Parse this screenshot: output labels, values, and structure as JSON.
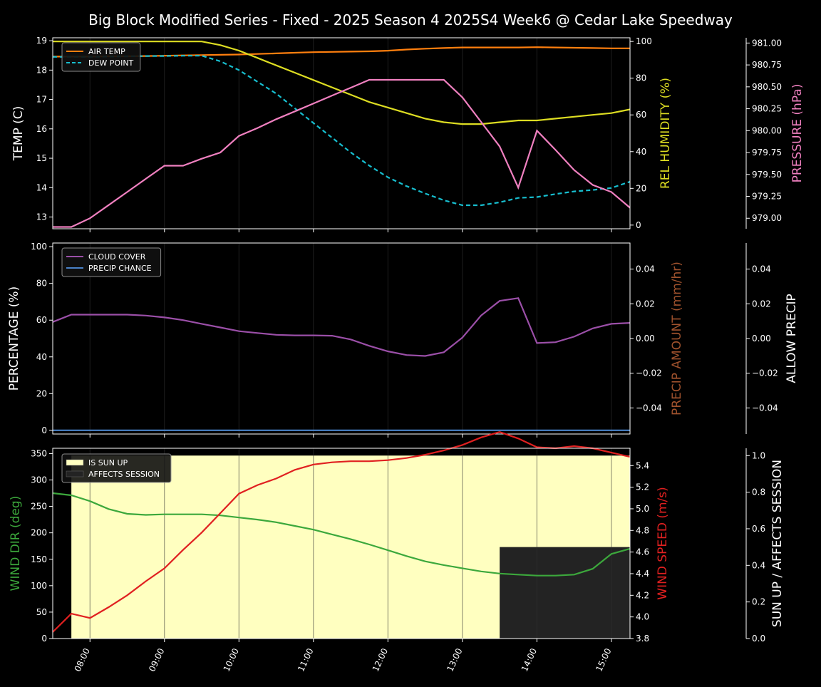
{
  "title": "Big Block Modified Series - Fixed - 2025 Season 4 2025S4 Week6 @ Cedar Lake Speedway",
  "x_ticks": [
    "08:00",
    "09:00",
    "10:00",
    "11:00",
    "12:00",
    "13:00",
    "14:00",
    "15:00"
  ],
  "colors": {
    "air_temp": "#ff7f0e",
    "dew_point": "#17becf",
    "humidity": "#dddd22",
    "pressure": "#f080c0",
    "cloud": "#9b4fa8",
    "precip_chance": "#4a82c8",
    "precip_amount": "#a0522d",
    "wind_dir": "#3ca83c",
    "wind_speed": "#e02020",
    "sun_up": "#ffffc0",
    "affects": "#232323"
  },
  "chart_data": [
    {
      "type": "line",
      "x_ticks": [
        "08:00",
        "09:00",
        "10:00",
        "11:00",
        "12:00",
        "13:00",
        "14:00",
        "15:00"
      ],
      "x_hours": [
        7.5,
        7.75,
        8.0,
        8.25,
        8.5,
        8.75,
        9.0,
        9.25,
        9.5,
        9.75,
        10.0,
        10.25,
        10.5,
        10.75,
        11.0,
        11.25,
        11.5,
        11.75,
        12.0,
        12.25,
        12.5,
        12.75,
        13.0,
        13.25,
        13.5,
        13.75,
        14.0,
        14.25,
        14.5,
        14.75,
        15.0,
        15.25
      ],
      "ylabel": "TEMP (C)",
      "ylim": [
        12.6,
        19.1
      ],
      "yticks": [
        13,
        14,
        15,
        16,
        17,
        18,
        19
      ],
      "y2label": "REL HUMIDITY (%)",
      "y2lim": [
        -2,
        102
      ],
      "y2ticks": [
        0,
        20,
        40,
        60,
        80,
        100
      ],
      "y3label": "PRESSURE (hPa)",
      "y3lim": [
        978.88,
        981.06
      ],
      "y3ticks": [
        "979.00",
        "979.25",
        "979.50",
        "979.75",
        "980.00",
        "980.25",
        "980.50",
        "980.75",
        "981.00"
      ],
      "legend": [
        "AIR TEMP",
        "DEW POINT"
      ],
      "series": [
        {
          "name": "AIR TEMP",
          "axis": "y",
          "color_key": "air_temp",
          "dash": false,
          "values": [
            18.46,
            18.46,
            18.46,
            18.47,
            18.47,
            18.48,
            18.49,
            18.5,
            18.51,
            18.52,
            18.53,
            18.55,
            18.57,
            18.59,
            18.61,
            18.62,
            18.63,
            18.64,
            18.66,
            18.7,
            18.73,
            18.75,
            18.77,
            18.77,
            18.77,
            18.77,
            18.78,
            18.77,
            18.76,
            18.75,
            18.74,
            18.74
          ]
        },
        {
          "name": "DEW POINT",
          "axis": "y",
          "color_key": "dew_point",
          "dash": true,
          "values": [
            18.45,
            18.45,
            18.45,
            18.46,
            18.47,
            18.48,
            18.48,
            18.49,
            18.49,
            18.3,
            18.0,
            17.6,
            17.2,
            16.7,
            16.2,
            15.7,
            15.2,
            14.75,
            14.35,
            14.05,
            13.8,
            13.57,
            13.4,
            13.4,
            13.5,
            13.65,
            13.68,
            13.78,
            13.87,
            13.92,
            13.99,
            14.2
          ]
        },
        {
          "name": "REL HUMIDITY",
          "axis": "y2",
          "color_key": "humidity",
          "dash": false,
          "values": [
            100,
            100,
            100,
            100,
            100,
            100,
            100,
            100,
            100,
            98,
            95,
            91,
            87,
            83,
            79,
            75,
            71,
            67,
            64,
            61,
            58,
            56,
            55,
            55,
            56,
            57,
            57,
            58,
            59,
            60,
            61,
            63
          ]
        },
        {
          "name": "PRESSURE",
          "axis": "y3",
          "color_key": "pressure",
          "dash": false,
          "values": [
            978.9,
            978.9,
            979.0,
            979.15,
            979.3,
            979.45,
            979.6,
            979.6,
            979.68,
            979.75,
            979.94,
            980.03,
            980.13,
            980.22,
            980.31,
            980.4,
            980.49,
            980.58,
            980.58,
            980.58,
            980.58,
            980.58,
            980.38,
            980.1,
            979.82,
            979.35,
            980.0,
            979.78,
            979.55,
            979.38,
            979.3,
            979.12
          ]
        }
      ]
    },
    {
      "type": "line",
      "ylabel": "PERCENTAGE (%)",
      "ylim": [
        -2,
        102
      ],
      "yticks": [
        0,
        20,
        40,
        60,
        80,
        100
      ],
      "y2label": "PRECIP AMOUNT (mm/hr)",
      "y2lim": [
        -0.055,
        0.055
      ],
      "y2ticks": [
        "0.04",
        "0.02",
        "0.00",
        "−0.02",
        "−0.04"
      ],
      "y3label": "ALLOW PRECIP",
      "y3ticks": [
        "0.04",
        "0.02",
        "0.00",
        "−0.02",
        "−0.04"
      ],
      "legend": [
        "CLOUD COVER",
        "PRECIP CHANCE"
      ],
      "series": [
        {
          "name": "CLOUD COVER",
          "axis": "y",
          "color_key": "cloud",
          "values": [
            59,
            63,
            63,
            63,
            63,
            62.5,
            61.5,
            60,
            58,
            56,
            54,
            53,
            52,
            51.7,
            51.7,
            51.5,
            49.5,
            46,
            43,
            41,
            40.5,
            42.5,
            50.5,
            62.5,
            70.5,
            72,
            47.5,
            48,
            51,
            55.5,
            58,
            58.5
          ]
        },
        {
          "name": "PRECIP CHANCE",
          "axis": "y",
          "color_key": "precip_chance",
          "values": [
            0,
            0,
            0,
            0,
            0,
            0,
            0,
            0,
            0,
            0,
            0,
            0,
            0,
            0,
            0,
            0,
            0,
            0,
            0,
            0,
            0,
            0,
            0,
            0,
            0,
            0,
            0,
            0,
            0,
            0,
            0,
            0
          ]
        }
      ]
    },
    {
      "type": "line",
      "ylabel": "WIND DIR (deg)",
      "ylim": [
        0,
        360
      ],
      "yticks": [
        0,
        50,
        100,
        150,
        200,
        250,
        300,
        350
      ],
      "y2label": "WIND SPEED (m/s)",
      "y2lim": [
        3.8,
        5.56
      ],
      "y2ticks": [
        "3.8",
        "4.0",
        "4.2",
        "4.4",
        "4.6",
        "4.8",
        "5.0",
        "5.2",
        "5.4"
      ],
      "y3label": "SUN UP / AFFECTS SESSION",
      "y3lim": [
        0,
        1.04
      ],
      "y3ticks": [
        "0.0",
        "0.2",
        "0.4",
        "0.6",
        "0.8",
        "1.0"
      ],
      "legend": [
        "IS SUN UP",
        "AFFECTS SESSION"
      ],
      "sun_up": {
        "from": 7.75,
        "to": 15.25,
        "value": 1.0
      },
      "affects_session": {
        "from": 13.5,
        "to": 15.25,
        "value": 0.5
      },
      "series": [
        {
          "name": "WIND DIR",
          "axis": "y",
          "color_key": "wind_dir",
          "values": [
            275,
            271,
            260,
            245,
            236,
            234,
            235,
            235,
            235,
            233,
            229,
            225,
            220,
            213,
            206,
            197,
            188,
            178,
            167,
            156,
            146,
            139,
            133,
            127,
            123,
            121,
            119,
            119,
            121,
            132,
            160,
            170
          ]
        },
        {
          "name": "WIND SPEED",
          "axis": "y2",
          "color_key": "wind_speed",
          "values": [
            3.86,
            4.03,
            3.99,
            4.09,
            4.2,
            4.33,
            4.45,
            4.62,
            4.78,
            4.96,
            5.14,
            5.22,
            5.28,
            5.36,
            5.41,
            5.43,
            5.44,
            5.44,
            5.45,
            5.47,
            5.5,
            5.54,
            5.59,
            5.66,
            5.71,
            5.65,
            5.57,
            5.56,
            5.58,
            5.56,
            5.52,
            5.48
          ]
        }
      ]
    }
  ]
}
